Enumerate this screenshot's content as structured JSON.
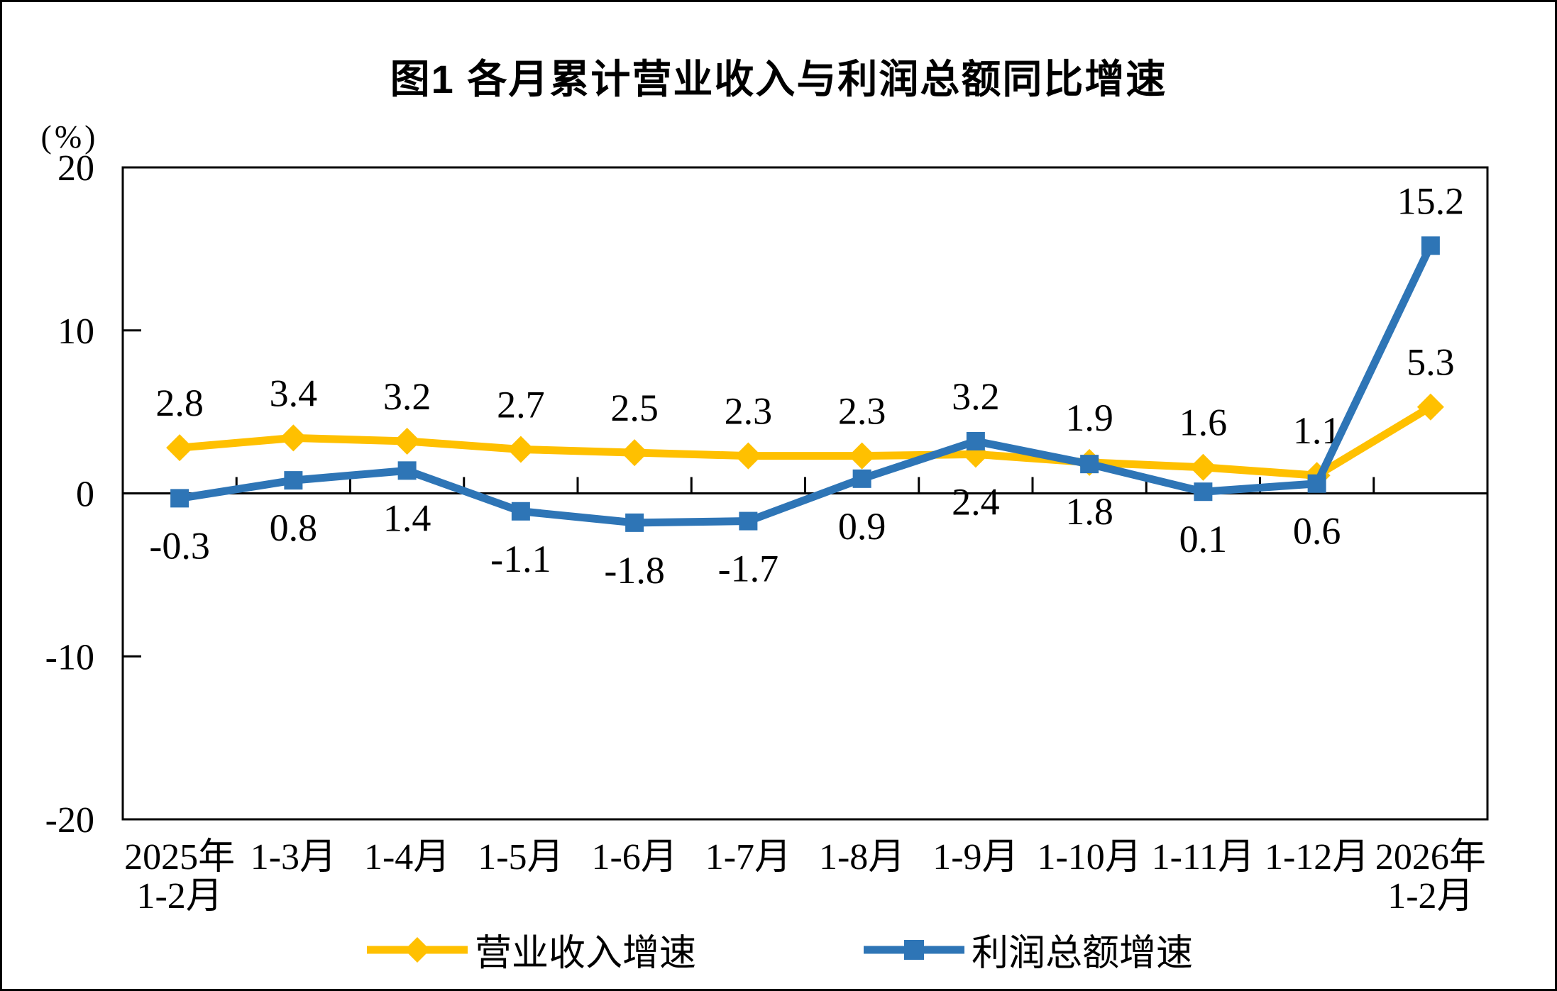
{
  "chart_data": {
    "type": "line",
    "title": "图1  各月累计营业收入与利润总额同比增速",
    "unit_label": "(%)",
    "categories": [
      "2025年\n1-2月",
      "1-3月",
      "1-4月",
      "1-5月",
      "1-6月",
      "1-7月",
      "1-8月",
      "1-9月",
      "1-10月",
      "1-11月",
      "1-12月",
      "2026年\n1-2月"
    ],
    "ylim": [
      -20,
      20
    ],
    "yticks": [
      20,
      10,
      0,
      -10,
      -20
    ],
    "grid": false,
    "legend_position": "bottom",
    "axis_color": "#000000",
    "background": "#FFFFFF",
    "series": [
      {
        "name": "营业收入增速",
        "color": "#FFC000",
        "marker": "diamond",
        "values": [
          2.8,
          3.4,
          3.2,
          2.7,
          2.5,
          2.3,
          2.3,
          2.4,
          1.9,
          1.6,
          1.1,
          5.3
        ],
        "label_positions": [
          "above",
          "above",
          "above",
          "above",
          "above",
          "above",
          "above",
          "below",
          "above",
          "above",
          "above",
          "above"
        ]
      },
      {
        "name": "利润总额增速",
        "color": "#2E75B6",
        "marker": "square",
        "values": [
          -0.3,
          0.8,
          1.4,
          -1.1,
          -1.8,
          -1.7,
          0.9,
          3.2,
          1.8,
          0.1,
          0.6,
          15.2
        ],
        "label_positions": [
          "below",
          "below",
          "below",
          "below",
          "below",
          "below",
          "below",
          "above",
          "below",
          "below",
          "below",
          "above"
        ]
      }
    ]
  }
}
